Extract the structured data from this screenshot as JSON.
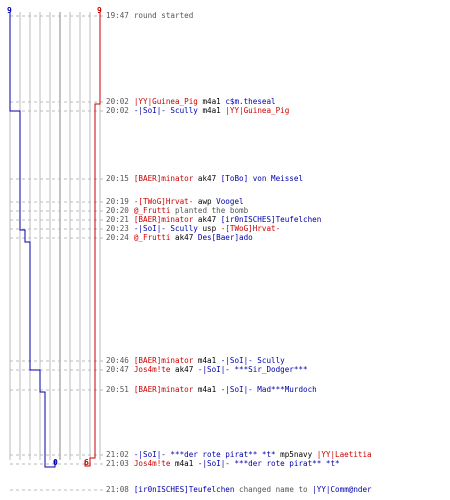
{
  "scores": {
    "blue_start": "9",
    "red_start": "9",
    "blue_end": "0",
    "red_end": "6"
  },
  "colors": {
    "red": "#cc0000",
    "blue": "#0000aa",
    "grid": "#bbbbbb",
    "text": "#000000",
    "muted": "#555555"
  },
  "events": [
    {
      "time": "19:47",
      "parts": [
        {
          "t": "round started",
          "c": "grey"
        }
      ]
    },
    {
      "time": "20:02",
      "parts": [
        {
          "t": "|YY|Guinea_Pig",
          "c": "red"
        },
        {
          "t": " m4a1 ",
          "c": "plain"
        },
        {
          "t": "c$m.theseal",
          "c": "blue"
        }
      ]
    },
    {
      "time": "20:02",
      "parts": [
        {
          "t": "-|SoI|- Scully",
          "c": "blue"
        },
        {
          "t": " m4a1 ",
          "c": "plain"
        },
        {
          "t": "|YY|Guinea_Pig",
          "c": "red"
        }
      ]
    },
    {
      "time": "20:15",
      "parts": [
        {
          "t": "[BAER]minator",
          "c": "red"
        },
        {
          "t": " ak47 ",
          "c": "plain"
        },
        {
          "t": "[ToBo] von Meissel",
          "c": "blue"
        }
      ]
    },
    {
      "time": "20:19",
      "parts": [
        {
          "t": "-[TWoG]Hrvat-",
          "c": "red"
        },
        {
          "t": " awp ",
          "c": "plain"
        },
        {
          "t": "Voogel",
          "c": "blue"
        }
      ]
    },
    {
      "time": "20:20",
      "parts": [
        {
          "t": "@_Frutti",
          "c": "red"
        },
        {
          "t": " planted the bomb",
          "c": "grey"
        }
      ]
    },
    {
      "time": "20:21",
      "parts": [
        {
          "t": "[BAER]minator",
          "c": "red"
        },
        {
          "t": " ak47 ",
          "c": "plain"
        },
        {
          "t": "[ir0nISCHES]Teufelchen",
          "c": "blue"
        }
      ]
    },
    {
      "time": "20:23",
      "parts": [
        {
          "t": "-|SoI|- Scully",
          "c": "blue"
        },
        {
          "t": " usp ",
          "c": "plain"
        },
        {
          "t": "-[TWoG]Hrvat-",
          "c": "red"
        }
      ]
    },
    {
      "time": "20:24",
      "parts": [
        {
          "t": "@_Frutti",
          "c": "red"
        },
        {
          "t": " ak47 ",
          "c": "plain"
        },
        {
          "t": "Des[Baer]ado",
          "c": "blue"
        }
      ]
    },
    {
      "time": "20:46",
      "parts": [
        {
          "t": "[BAER]minator",
          "c": "red"
        },
        {
          "t": " m4a1 ",
          "c": "plain"
        },
        {
          "t": "-|SoI|- Scully",
          "c": "blue"
        }
      ]
    },
    {
      "time": "20:47",
      "parts": [
        {
          "t": "Jos4m!te",
          "c": "red"
        },
        {
          "t": " ak47 ",
          "c": "plain"
        },
        {
          "t": "-|SoI|- ***Sir_Dodger***",
          "c": "blue"
        }
      ]
    },
    {
      "time": "20:51",
      "parts": [
        {
          "t": "[BAER]minator",
          "c": "red"
        },
        {
          "t": " m4a1 ",
          "c": "plain"
        },
        {
          "t": "-|SoI|- Mad***Murdoch",
          "c": "blue"
        }
      ]
    },
    {
      "time": "21:02",
      "parts": [
        {
          "t": "-|SoI|- ***der rote pirat** *t*",
          "c": "blue"
        },
        {
          "t": " mp5navy ",
          "c": "plain"
        },
        {
          "t": "|YY|Laetitia",
          "c": "red"
        }
      ]
    },
    {
      "time": "21:03",
      "parts": [
        {
          "t": "Jos4m!te",
          "c": "red"
        },
        {
          "t": " m4a1 ",
          "c": "plain"
        },
        {
          "t": "-|SoI|- ***der rote pirat** *t*",
          "c": "blue"
        }
      ]
    },
    {
      "time": "21:08",
      "parts": [
        {
          "t": "[ir0nISCHES]Teufelchen",
          "c": "blue"
        },
        {
          "t": " changed name to ",
          "c": "grey"
        },
        {
          "t": "|YY|Comm@nder",
          "c": "blue"
        }
      ]
    }
  ]
}
